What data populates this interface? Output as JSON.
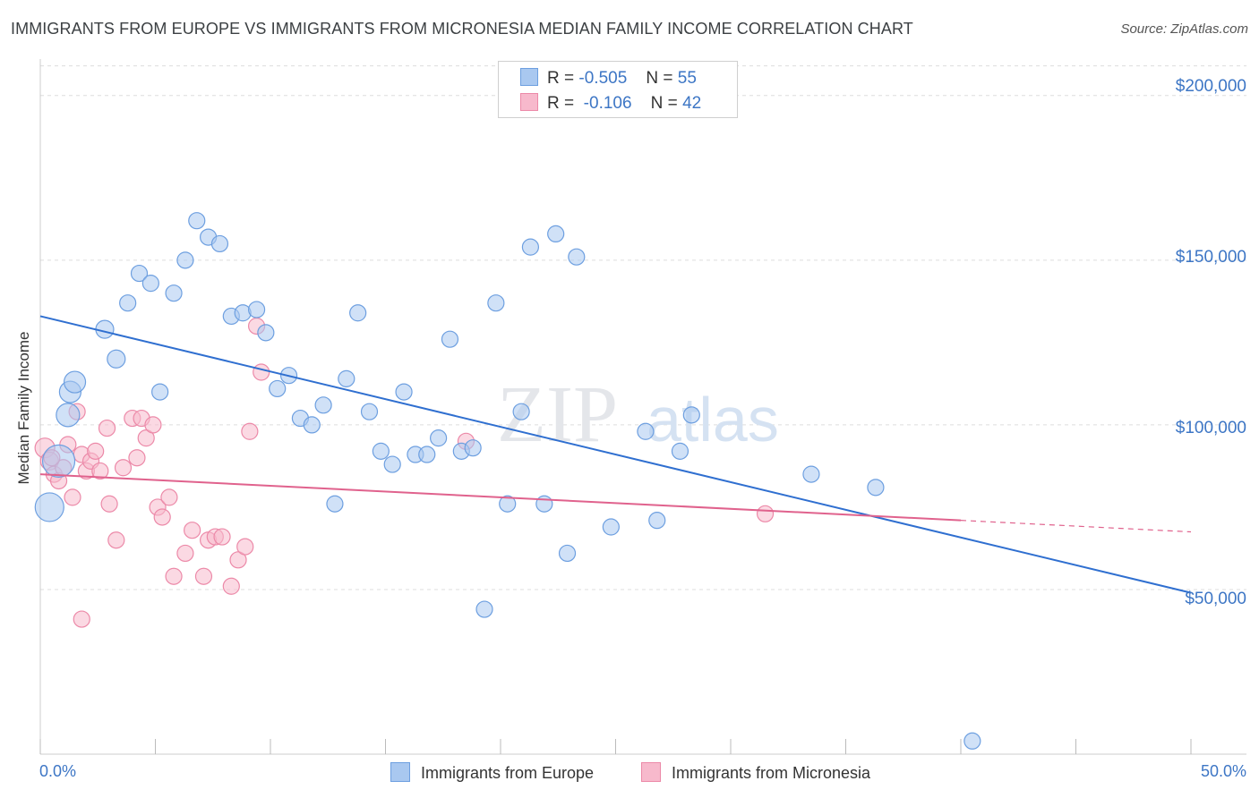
{
  "title": "IMMIGRANTS FROM EUROPE VS IMMIGRANTS FROM MICRONESIA MEDIAN FAMILY INCOME CORRELATION CHART",
  "source": "Source: ZipAtlas.com",
  "watermark": {
    "zip": "ZIP",
    "atlas": "atlas"
  },
  "legend": {
    "rows": [
      {
        "r_label": "R =",
        "r_value": "-0.505",
        "n_label": "N =",
        "n_value": "55"
      },
      {
        "r_label": "R =",
        "r_value": "-0.106",
        "n_label": "N =",
        "n_value": "42"
      }
    ]
  },
  "colors": {
    "europe_fill": "#a9c8f0",
    "europe_stroke": "#6d9fe0",
    "europe_line": "#2f6fd0",
    "micronesia_fill": "#f7b9cc",
    "micronesia_stroke": "#ec89a8",
    "micronesia_line": "#e0628d",
    "grid": "#dddddd",
    "axis_text": "#3d76c5"
  },
  "chart_data": {
    "type": "scatter",
    "title": "IMMIGRANTS FROM EUROPE VS IMMIGRANTS FROM MICRONESIA MEDIAN FAMILY INCOME CORRELATION CHART",
    "xlabel": "",
    "ylabel": "Median Family Income",
    "xlim": [
      0,
      50
    ],
    "ylim": [
      0,
      210000
    ],
    "x_tick_labels": [
      "0.0%",
      "50.0%"
    ],
    "y_ticks": [
      50000,
      100000,
      150000,
      200000
    ],
    "y_tick_labels": [
      "$50,000",
      "$100,000",
      "$150,000",
      "$200,000"
    ],
    "grid": true,
    "legend_position": "bottom",
    "series": [
      {
        "name": "Immigrants from Europe",
        "r": -0.505,
        "n": 55,
        "trend": {
          "x": [
            0,
            50
          ],
          "y": [
            133000,
            49000
          ]
        },
        "points": [
          [
            0.4,
            75000,
            16
          ],
          [
            0.8,
            89000,
            18
          ],
          [
            1.2,
            103000,
            13
          ],
          [
            1.3,
            110000,
            12
          ],
          [
            1.5,
            113000,
            12
          ],
          [
            2.8,
            129000,
            10
          ],
          [
            3.3,
            120000,
            10
          ],
          [
            3.8,
            137000,
            9
          ],
          [
            4.3,
            146000,
            9
          ],
          [
            4.8,
            143000,
            9
          ],
          [
            5.2,
            110000,
            9
          ],
          [
            5.8,
            140000,
            9
          ],
          [
            6.3,
            150000,
            9
          ],
          [
            6.8,
            162000,
            9
          ],
          [
            7.3,
            157000,
            9
          ],
          [
            7.8,
            155000,
            9
          ],
          [
            8.3,
            133000,
            9
          ],
          [
            8.8,
            134000,
            9
          ],
          [
            9.4,
            135000,
            9
          ],
          [
            9.8,
            128000,
            9
          ],
          [
            10.3,
            111000,
            9
          ],
          [
            10.8,
            115000,
            9
          ],
          [
            11.3,
            102000,
            9
          ],
          [
            11.8,
            100000,
            9
          ],
          [
            12.3,
            106000,
            9
          ],
          [
            12.8,
            76000,
            9
          ],
          [
            13.3,
            114000,
            9
          ],
          [
            13.8,
            134000,
            9
          ],
          [
            14.3,
            104000,
            9
          ],
          [
            14.8,
            92000,
            9
          ],
          [
            15.3,
            88000,
            9
          ],
          [
            15.8,
            110000,
            9
          ],
          [
            16.3,
            91000,
            9
          ],
          [
            16.8,
            91000,
            9
          ],
          [
            17.3,
            96000,
            9
          ],
          [
            17.8,
            126000,
            9
          ],
          [
            18.3,
            92000,
            9
          ],
          [
            18.8,
            93000,
            9
          ],
          [
            19.3,
            44000,
            9
          ],
          [
            19.8,
            137000,
            9
          ],
          [
            20.3,
            76000,
            9
          ],
          [
            20.9,
            104000,
            9
          ],
          [
            21.3,
            154000,
            9
          ],
          [
            21.9,
            76000,
            9
          ],
          [
            22.4,
            158000,
            9
          ],
          [
            22.9,
            61000,
            9
          ],
          [
            23.3,
            151000,
            9
          ],
          [
            24.8,
            69000,
            9
          ],
          [
            26.3,
            98000,
            9
          ],
          [
            26.8,
            71000,
            9
          ],
          [
            27.8,
            92000,
            9
          ],
          [
            28.3,
            103000,
            9
          ],
          [
            33.5,
            85000,
            9
          ],
          [
            36.3,
            81000,
            9
          ],
          [
            40.5,
            4000,
            9
          ]
        ]
      },
      {
        "name": "Immigrants from Micronesia",
        "r": -0.106,
        "n": 42,
        "trend": {
          "x": [
            0,
            40
          ],
          "y": [
            85000,
            71000
          ]
        },
        "trend_dashed": {
          "x": [
            40,
            50
          ],
          "y": [
            71000,
            67500
          ]
        },
        "points": [
          [
            0.2,
            93000,
            11
          ],
          [
            0.4,
            89000,
            10
          ],
          [
            0.6,
            85000,
            9
          ],
          [
            0.8,
            83000,
            9
          ],
          [
            1.0,
            87000,
            9
          ],
          [
            1.2,
            94000,
            9
          ],
          [
            1.4,
            78000,
            9
          ],
          [
            1.6,
            104000,
            9
          ],
          [
            1.8,
            91000,
            9
          ],
          [
            2.0,
            86000,
            9
          ],
          [
            2.2,
            89000,
            9
          ],
          [
            2.4,
            92000,
            9
          ],
          [
            2.6,
            86000,
            9
          ],
          [
            2.9,
            99000,
            9
          ],
          [
            3.0,
            76000,
            9
          ],
          [
            3.3,
            65000,
            9
          ],
          [
            3.6,
            87000,
            9
          ],
          [
            4.0,
            102000,
            9
          ],
          [
            4.2,
            90000,
            9
          ],
          [
            4.4,
            102000,
            9
          ],
          [
            4.6,
            96000,
            9
          ],
          [
            4.9,
            100000,
            9
          ],
          [
            5.1,
            75000,
            9
          ],
          [
            5.3,
            72000,
            9
          ],
          [
            5.6,
            78000,
            9
          ],
          [
            5.8,
            54000,
            9
          ],
          [
            6.3,
            61000,
            9
          ],
          [
            6.6,
            68000,
            9
          ],
          [
            7.1,
            54000,
            9
          ],
          [
            7.3,
            65000,
            9
          ],
          [
            7.6,
            66000,
            9
          ],
          [
            7.9,
            66000,
            9
          ],
          [
            8.3,
            51000,
            9
          ],
          [
            8.6,
            59000,
            9
          ],
          [
            8.9,
            63000,
            9
          ],
          [
            9.1,
            98000,
            9
          ],
          [
            9.4,
            130000,
            9
          ],
          [
            9.6,
            116000,
            9
          ],
          [
            1.8,
            41000,
            9
          ],
          [
            18.5,
            95000,
            9
          ],
          [
            31.5,
            73000,
            9
          ],
          [
            0.5,
            90000,
            9
          ]
        ]
      }
    ]
  }
}
